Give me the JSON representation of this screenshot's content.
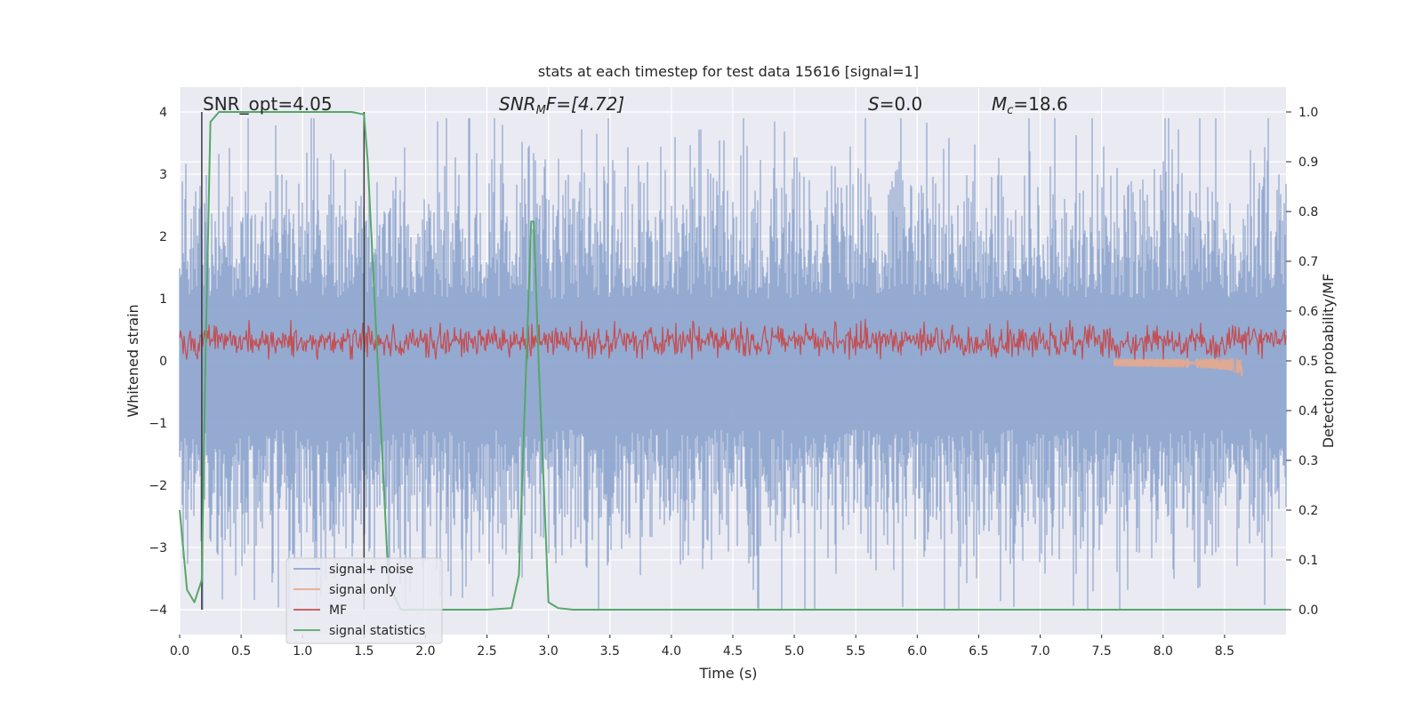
{
  "chart_data": {
    "type": "line",
    "title": "stats at each timestep for test data 15616 [signal=1]",
    "xlabel": "Time (s)",
    "ylabel": "Whitened strain",
    "y2label": "Detection probability/MF",
    "xlim": [
      0,
      9.0
    ],
    "ylim": [
      -4.4,
      4.4
    ],
    "y2lim": [
      -0.05,
      1.05
    ],
    "xticks": [
      "0.0",
      "0.5",
      "1.0",
      "1.5",
      "2.0",
      "2.5",
      "3.0",
      "3.5",
      "4.0",
      "4.5",
      "5.0",
      "5.5",
      "6.0",
      "6.5",
      "7.0",
      "7.5",
      "8.0",
      "8.5"
    ],
    "xtick_values": [
      0,
      0.5,
      1.0,
      1.5,
      2.0,
      2.5,
      3.0,
      3.5,
      4.0,
      4.5,
      5.0,
      5.5,
      6.0,
      6.5,
      7.0,
      7.5,
      8.0,
      8.5
    ],
    "yticks": [
      "4",
      "3",
      "2",
      "1",
      "0",
      "−1",
      "−2",
      "−3",
      "−4"
    ],
    "ytick_values": [
      4,
      3,
      2,
      1,
      0,
      -1,
      -2,
      -3,
      -4
    ],
    "y2ticks": [
      "1.0",
      "0.9",
      "0.8",
      "0.7",
      "0.6",
      "0.5",
      "0.4",
      "0.3",
      "0.2",
      "0.1",
      "0.0"
    ],
    "y2tick_values": [
      1.0,
      0.9,
      0.8,
      0.7,
      0.6,
      0.5,
      0.4,
      0.3,
      0.2,
      0.1,
      0.0
    ],
    "annotations": {
      "snr_opt": "SNR_opt=4.05",
      "snr_mf_prefix": "SNR",
      "snr_mf_sub": "M",
      "snr_mf_suffix": "F=[4.72]",
      "s_var": "S",
      "s_val": "=0.0",
      "mc_var": "M",
      "mc_sub": "c",
      "mc_val": "=18.6"
    },
    "vlines": [
      0.18,
      1.5
    ],
    "series": [
      {
        "name": "signal+ noise",
        "color": "#8fa6cf",
        "axis": "left",
        "noise_amplitude": 1.2
      },
      {
        "name": "signal only",
        "color": "#e8a98c",
        "axis": "left",
        "chirp_end": 8.65
      },
      {
        "name": "MF",
        "color": "#c44e52",
        "axis": "left"
      },
      {
        "name": "signal statistics",
        "color": "#55a868",
        "axis": "right",
        "x": [
          0.0,
          0.06,
          0.12,
          0.18,
          0.21,
          0.25,
          0.32,
          0.45,
          1.0,
          1.4,
          1.5,
          1.53,
          1.6,
          1.65,
          1.7,
          1.8,
          2.5,
          2.7,
          2.76,
          2.82,
          2.86,
          2.88,
          2.92,
          2.97,
          3.0,
          3.08,
          3.2,
          9.0
        ],
        "y": [
          0.2,
          0.04,
          0.015,
          0.06,
          0.5,
          0.98,
          1.0,
          1.0,
          1.0,
          1.0,
          0.995,
          0.9,
          0.55,
          0.3,
          0.05,
          0.0,
          0.0,
          0.003,
          0.07,
          0.5,
          0.78,
          0.78,
          0.5,
          0.2,
          0.015,
          0.003,
          0.0,
          0.0
        ]
      }
    ],
    "legend": {
      "position": "lower-left",
      "entries": [
        "signal+ noise",
        "signal only",
        "MF",
        "signal statistics"
      ]
    }
  },
  "colors": {
    "plot_background": "#eaeaf2",
    "grid": "#ffffff",
    "vline": "#3c3c3c"
  }
}
